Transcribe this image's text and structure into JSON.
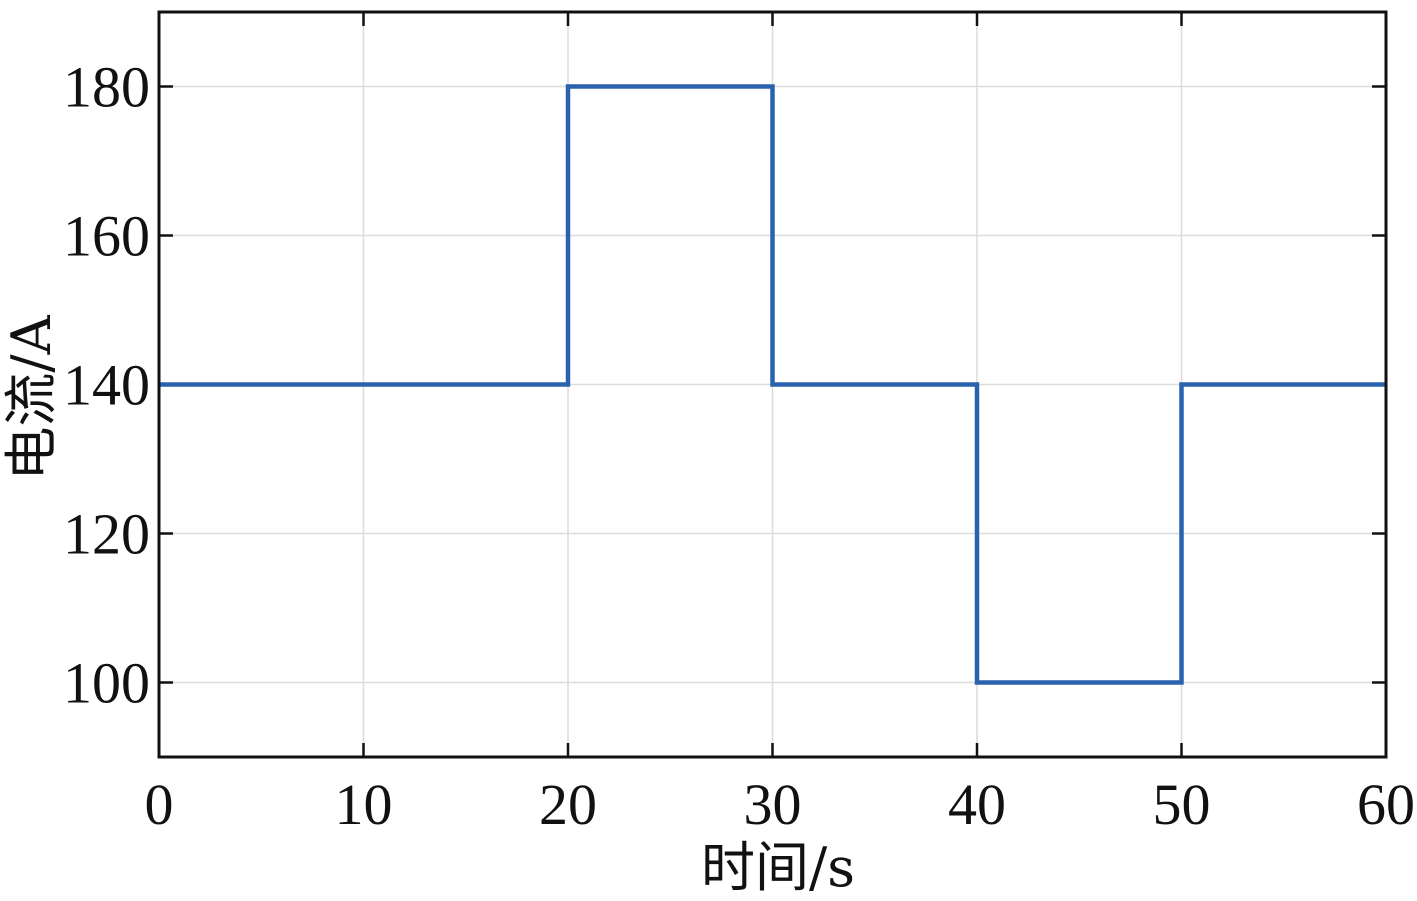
{
  "chart_data": {
    "type": "line",
    "step": true,
    "title": "",
    "xlabel": "时间/s",
    "ylabel": "电流/A",
    "xlim": [
      0,
      60
    ],
    "ylim": [
      90,
      190
    ],
    "xticks": [
      0,
      10,
      20,
      30,
      40,
      50,
      60
    ],
    "yticks": [
      100,
      120,
      140,
      160,
      180
    ],
    "grid": true,
    "legend": "none",
    "series": [
      {
        "color": "#2a62ad",
        "x": [
          0,
          20,
          20,
          30,
          30,
          40,
          40,
          50,
          50,
          60
        ],
        "y": [
          140,
          140,
          180,
          180,
          140,
          140,
          100,
          100,
          140,
          140
        ]
      }
    ]
  }
}
